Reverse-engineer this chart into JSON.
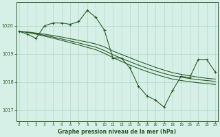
{
  "title": "Graphe pression niveau de la mer (hPa)",
  "bg_color": "#d6f0e8",
  "line_color": "#2d5a27",
  "grid_color": "#b0d8c8",
  "x_ticks": [
    0,
    1,
    2,
    3,
    4,
    5,
    6,
    7,
    8,
    9,
    10,
    11,
    12,
    13,
    14,
    15,
    16,
    17,
    18,
    19,
    20,
    21,
    22,
    23
  ],
  "y_ticks": [
    1017,
    1018,
    1019,
    1020
  ],
  "ylim": [
    1016.6,
    1020.85
  ],
  "xlim": [
    -0.3,
    23.3
  ],
  "y_main": [
    1019.8,
    1019.7,
    1019.55,
    1020.0,
    1020.1,
    1020.1,
    1020.05,
    1020.15,
    1020.55,
    1020.3,
    1019.85,
    1018.85,
    1018.85,
    1018.5,
    1017.85,
    1017.5,
    1017.35,
    1017.1,
    1017.7,
    1018.2,
    1018.15,
    1018.8,
    1018.8,
    1018.35
  ],
  "y_smooth1": [
    1019.8,
    1019.78,
    1019.74,
    1019.7,
    1019.65,
    1019.6,
    1019.54,
    1019.48,
    1019.42,
    1019.35,
    1019.25,
    1019.1,
    1018.98,
    1018.86,
    1018.74,
    1018.63,
    1018.52,
    1018.42,
    1018.33,
    1018.27,
    1018.22,
    1018.17,
    1018.13,
    1018.1
  ],
  "y_smooth2": [
    1019.8,
    1019.77,
    1019.72,
    1019.66,
    1019.6,
    1019.53,
    1019.46,
    1019.39,
    1019.31,
    1019.24,
    1019.12,
    1018.97,
    1018.84,
    1018.72,
    1018.6,
    1018.49,
    1018.39,
    1018.3,
    1018.22,
    1018.17,
    1018.12,
    1018.08,
    1018.05,
    1018.02
  ],
  "y_smooth3": [
    1019.8,
    1019.76,
    1019.7,
    1019.63,
    1019.56,
    1019.48,
    1019.4,
    1019.32,
    1019.23,
    1019.15,
    1019.02,
    1018.87,
    1018.73,
    1018.6,
    1018.48,
    1018.37,
    1018.27,
    1018.18,
    1018.1,
    1018.05,
    1018.01,
    1017.97,
    1017.94,
    1017.91
  ]
}
